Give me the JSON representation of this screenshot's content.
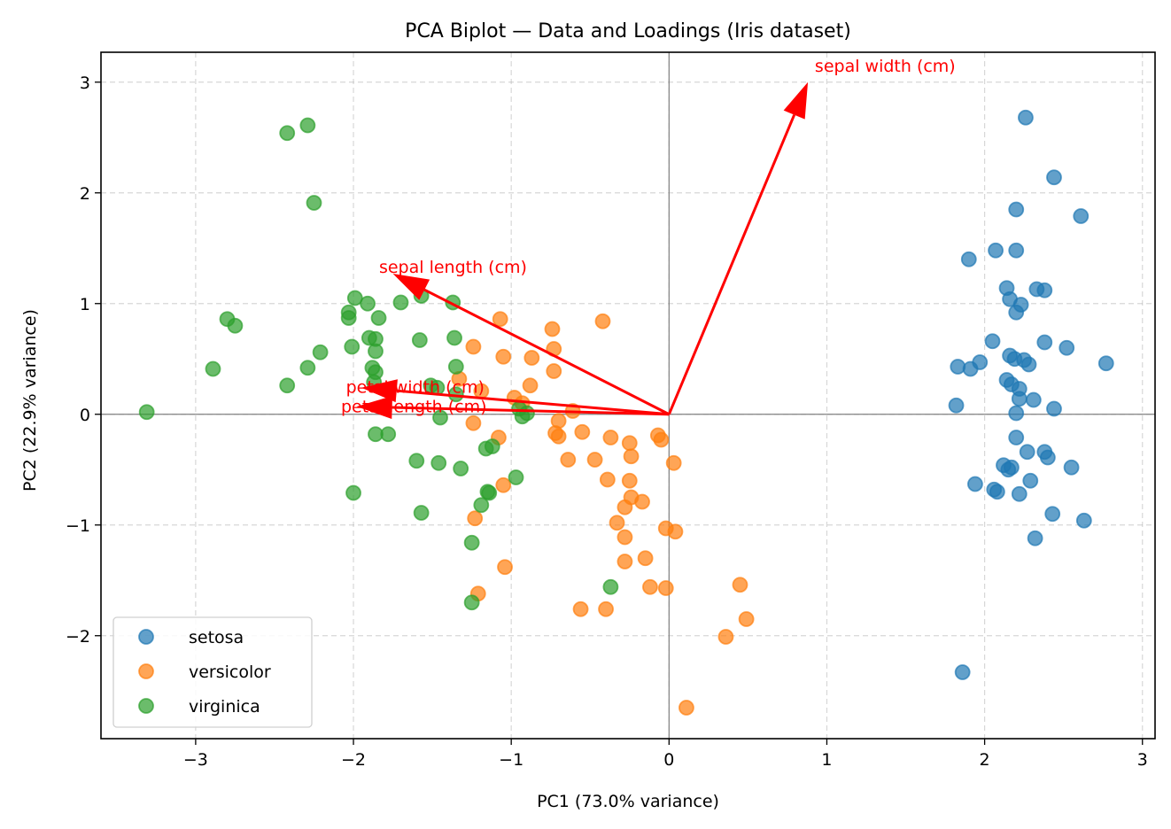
{
  "chart_data": {
    "type": "scatter",
    "title": "PCA Biplot — Data and Loadings (Iris dataset)",
    "xlabel": "PC1 (73.0% variance)",
    "ylabel": "PC2 (22.9% variance)",
    "xlim": [
      -3.6,
      3.08
    ],
    "ylim": [
      -2.93,
      3.27
    ],
    "xticks": [
      -3,
      -2,
      -1,
      0,
      1,
      2,
      3
    ],
    "yticks": [
      -2,
      -1,
      0,
      1,
      2,
      3
    ],
    "xtick_labels": [
      "−3",
      "−2",
      "−1",
      "0",
      "1",
      "2",
      "3"
    ],
    "ytick_labels": [
      "−2",
      "−1",
      "0",
      "1",
      "2",
      "3"
    ],
    "grid": true,
    "legend_position": "lower-left",
    "series": [
      {
        "name": "setosa",
        "color": "#1f77b4",
        "points": [
          [
            2.26,
            2.68
          ],
          [
            2.44,
            2.14
          ],
          [
            2.2,
            1.85
          ],
          [
            2.61,
            1.79
          ],
          [
            2.07,
            1.48
          ],
          [
            2.2,
            1.48
          ],
          [
            1.9,
            1.4
          ],
          [
            2.14,
            1.14
          ],
          [
            2.33,
            1.13
          ],
          [
            2.38,
            1.12
          ],
          [
            2.16,
            1.04
          ],
          [
            2.23,
            0.99
          ],
          [
            2.2,
            0.92
          ],
          [
            2.05,
            0.66
          ],
          [
            2.38,
            0.65
          ],
          [
            2.52,
            0.6
          ],
          [
            2.77,
            0.46
          ],
          [
            2.16,
            0.53
          ],
          [
            2.25,
            0.49
          ],
          [
            2.28,
            0.45
          ],
          [
            2.19,
            0.5
          ],
          [
            1.83,
            0.43
          ],
          [
            1.91,
            0.41
          ],
          [
            1.97,
            0.47
          ],
          [
            2.14,
            0.31
          ],
          [
            2.17,
            0.27
          ],
          [
            2.22,
            0.23
          ],
          [
            2.22,
            0.14
          ],
          [
            2.31,
            0.13
          ],
          [
            1.82,
            0.08
          ],
          [
            2.2,
            0.01
          ],
          [
            2.44,
            0.05
          ],
          [
            2.2,
            -0.21
          ],
          [
            2.27,
            -0.34
          ],
          [
            2.38,
            -0.34
          ],
          [
            2.4,
            -0.39
          ],
          [
            2.12,
            -0.46
          ],
          [
            2.15,
            -0.5
          ],
          [
            2.17,
            -0.48
          ],
          [
            2.55,
            -0.48
          ],
          [
            1.94,
            -0.63
          ],
          [
            2.29,
            -0.6
          ],
          [
            2.06,
            -0.68
          ],
          [
            2.08,
            -0.7
          ],
          [
            2.22,
            -0.72
          ],
          [
            2.43,
            -0.9
          ],
          [
            2.63,
            -0.96
          ],
          [
            2.32,
            -1.12
          ],
          [
            1.86,
            -2.33
          ]
        ]
      },
      {
        "name": "versicolor",
        "color": "#ff7f0e",
        "points": [
          [
            -1.07,
            0.86
          ],
          [
            -0.42,
            0.84
          ],
          [
            -0.74,
            0.77
          ],
          [
            -0.73,
            0.59
          ],
          [
            -1.24,
            0.61
          ],
          [
            -0.87,
            0.51
          ],
          [
            -1.05,
            0.52
          ],
          [
            -0.73,
            0.39
          ],
          [
            -0.88,
            0.26
          ],
          [
            -1.33,
            0.32
          ],
          [
            -1.19,
            0.21
          ],
          [
            -0.93,
            0.1
          ],
          [
            -0.98,
            0.15
          ],
          [
            -0.61,
            0.03
          ],
          [
            -0.7,
            -0.06
          ],
          [
            -1.24,
            -0.08
          ],
          [
            -0.72,
            -0.17
          ],
          [
            -0.55,
            -0.16
          ],
          [
            -1.08,
            -0.21
          ],
          [
            -0.37,
            -0.21
          ],
          [
            -0.7,
            -0.2
          ],
          [
            -0.25,
            -0.26
          ],
          [
            -0.07,
            -0.19
          ],
          [
            -0.05,
            -0.23
          ],
          [
            -0.24,
            -0.38
          ],
          [
            -0.64,
            -0.41
          ],
          [
            -0.47,
            -0.41
          ],
          [
            0.03,
            -0.44
          ],
          [
            -0.39,
            -0.59
          ],
          [
            -0.25,
            -0.6
          ],
          [
            -1.05,
            -0.64
          ],
          [
            -0.24,
            -0.75
          ],
          [
            -0.28,
            -0.84
          ],
          [
            -0.17,
            -0.79
          ],
          [
            -1.23,
            -0.94
          ],
          [
            -0.33,
            -0.98
          ],
          [
            -0.28,
            -1.11
          ],
          [
            -0.02,
            -1.03
          ],
          [
            0.04,
            -1.06
          ],
          [
            -0.15,
            -1.3
          ],
          [
            -0.28,
            -1.33
          ],
          [
            -1.04,
            -1.38
          ],
          [
            -0.12,
            -1.56
          ],
          [
            -0.02,
            -1.57
          ],
          [
            0.45,
            -1.54
          ],
          [
            -1.21,
            -1.62
          ],
          [
            0.49,
            -1.85
          ],
          [
            -0.56,
            -1.76
          ],
          [
            -0.4,
            -1.76
          ],
          [
            0.36,
            -2.01
          ],
          [
            0.11,
            -2.65
          ]
        ]
      },
      {
        "name": "virginica",
        "color": "#2ca02c",
        "points": [
          [
            -2.29,
            2.61
          ],
          [
            -2.42,
            2.54
          ],
          [
            -2.25,
            1.91
          ],
          [
            -1.99,
            1.05
          ],
          [
            -1.91,
            1.0
          ],
          [
            -2.03,
            0.92
          ],
          [
            -2.03,
            0.87
          ],
          [
            -1.7,
            1.01
          ],
          [
            -1.57,
            1.07
          ],
          [
            -1.37,
            1.01
          ],
          [
            -1.84,
            0.87
          ],
          [
            -2.8,
            0.86
          ],
          [
            -2.75,
            0.8
          ],
          [
            -1.9,
            0.69
          ],
          [
            -1.86,
            0.68
          ],
          [
            -1.58,
            0.67
          ],
          [
            -1.36,
            0.69
          ],
          [
            -2.01,
            0.61
          ],
          [
            -2.21,
            0.56
          ],
          [
            -1.86,
            0.57
          ],
          [
            -2.89,
            0.41
          ],
          [
            -2.29,
            0.42
          ],
          [
            -1.88,
            0.42
          ],
          [
            -1.86,
            0.38
          ],
          [
            -1.35,
            0.43
          ],
          [
            -2.42,
            0.26
          ],
          [
            -1.87,
            0.29
          ],
          [
            -1.51,
            0.26
          ],
          [
            -1.47,
            0.24
          ],
          [
            -1.35,
            0.18
          ],
          [
            -0.95,
            0.05
          ],
          [
            -0.9,
            0.01
          ],
          [
            -0.93,
            -0.02
          ],
          [
            -3.31,
            0.02
          ],
          [
            -1.45,
            -0.03
          ],
          [
            -1.86,
            -0.18
          ],
          [
            -1.78,
            -0.18
          ],
          [
            -1.6,
            -0.42
          ],
          [
            -1.46,
            -0.44
          ],
          [
            -1.32,
            -0.49
          ],
          [
            -1.16,
            -0.31
          ],
          [
            -1.12,
            -0.29
          ],
          [
            -2.0,
            -0.71
          ],
          [
            -0.97,
            -0.57
          ],
          [
            -1.15,
            -0.7
          ],
          [
            -1.14,
            -0.71
          ],
          [
            -1.19,
            -0.82
          ],
          [
            -1.57,
            -0.89
          ],
          [
            -1.25,
            -1.16
          ],
          [
            -0.37,
            -1.56
          ],
          [
            -1.25,
            -1.7
          ]
        ]
      }
    ],
    "loadings": [
      {
        "name": "sepal length (cm)",
        "x": -1.75,
        "y": 1.27
      },
      {
        "name": "sepal width (cm)",
        "x": 0.88,
        "y": 3.0
      },
      {
        "name": "petal length (cm)",
        "x": -1.98,
        "y": 0.07
      },
      {
        "name": "petal width (cm)",
        "x": -1.95,
        "y": 0.24
      }
    ],
    "loading_color": "#ff0000"
  }
}
